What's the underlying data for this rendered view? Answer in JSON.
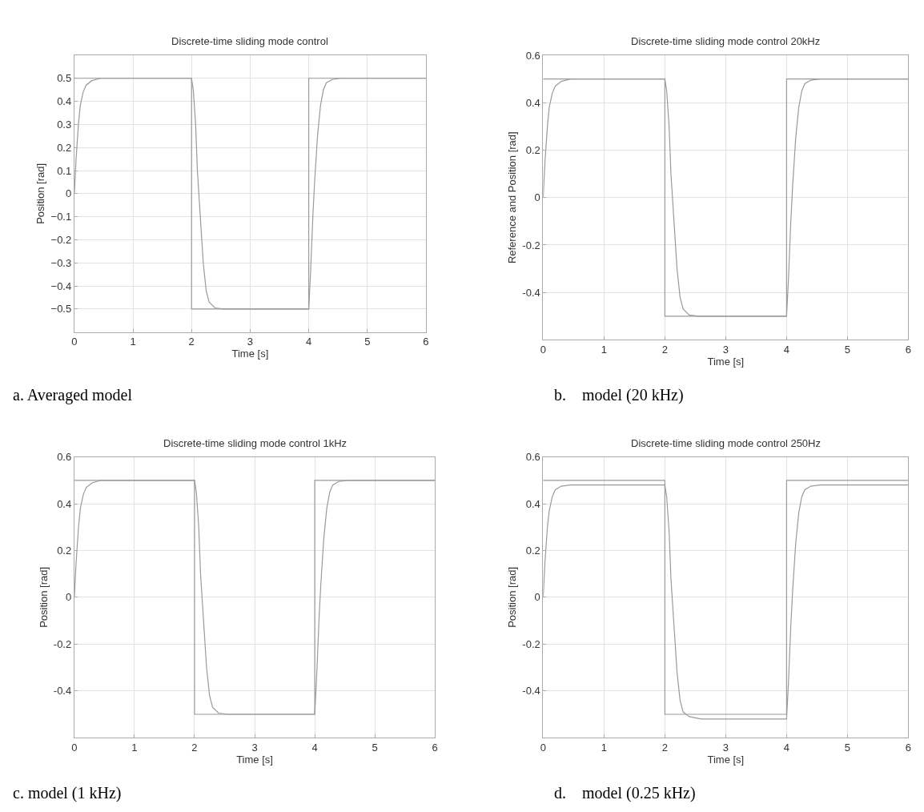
{
  "chart_data": [
    {
      "type": "line",
      "title": "Discrete-time sliding mode control",
      "xlabel": "Time [s]",
      "ylabel": "Position [rad]",
      "xlim": [
        0,
        6
      ],
      "xticks": [
        0,
        1,
        2,
        3,
        4,
        5,
        6
      ],
      "ylim": [
        -0.6,
        0.6
      ],
      "yticks": [
        {
          "value": -0.5,
          "label": "−0.5"
        },
        {
          "value": -0.4,
          "label": "−0.4"
        },
        {
          "value": -0.3,
          "label": "−0.3"
        },
        {
          "value": -0.2,
          "label": "−0.2"
        },
        {
          "value": -0.1,
          "label": "−0.1"
        },
        0,
        0.1,
        0.2,
        0.3,
        0.4,
        0.5
      ],
      "grid": true,
      "annotations": [
        "a. Averaged model"
      ],
      "series": [
        {
          "color": "#9a9a9a",
          "x": [
            0,
            2,
            2,
            4,
            4,
            6
          ],
          "values": [
            0.5,
            0.5,
            -0.5,
            -0.5,
            0.5,
            0.5
          ]
        },
        {
          "color": "#9a9a9a",
          "x": [
            0,
            0.03,
            0.07,
            0.1,
            0.15,
            0.2,
            0.3,
            0.45,
            2.0,
            2.03,
            2.07,
            2.1,
            2.15,
            2.2,
            2.25,
            2.3,
            2.4,
            2.55,
            4.0,
            4.03,
            4.07,
            4.1,
            4.15,
            4.2,
            4.25,
            4.3,
            4.4,
            4.55,
            6
          ],
          "values": [
            0,
            0.15,
            0.3,
            0.38,
            0.44,
            0.47,
            0.49,
            0.5,
            0.5,
            0.45,
            0.3,
            0.1,
            -0.1,
            -0.3,
            -0.42,
            -0.47,
            -0.495,
            -0.5,
            -0.5,
            -0.35,
            -0.1,
            0.05,
            0.25,
            0.38,
            0.45,
            0.48,
            0.495,
            0.5,
            0.5
          ]
        }
      ]
    },
    {
      "type": "line",
      "title": "Discrete-time sliding mode control 20kHz",
      "xlabel": "Time [s]",
      "ylabel": "Reference and Position [rad]",
      "xlim": [
        0,
        6
      ],
      "xticks": [
        0,
        1,
        2,
        3,
        4,
        5,
        6
      ],
      "ylim": [
        -0.6,
        0.6
      ],
      "yticks": [
        -0.4,
        -0.2,
        0,
        0.2,
        0.4,
        0.6
      ],
      "grid": true,
      "annotations": [
        "b.    model (20 kHz)"
      ],
      "series": [
        {
          "color": "#9a9a9a",
          "x": [
            0,
            2,
            2,
            4,
            4,
            6
          ],
          "values": [
            0.5,
            0.5,
            -0.5,
            -0.5,
            0.5,
            0.5
          ]
        },
        {
          "color": "#9a9a9a",
          "x": [
            0,
            0.03,
            0.07,
            0.1,
            0.15,
            0.2,
            0.3,
            0.45,
            2.0,
            2.03,
            2.07,
            2.1,
            2.15,
            2.2,
            2.25,
            2.3,
            2.4,
            2.55,
            4.0,
            4.03,
            4.07,
            4.1,
            4.15,
            4.2,
            4.25,
            4.3,
            4.4,
            4.55,
            6
          ],
          "values": [
            0,
            0.15,
            0.3,
            0.38,
            0.44,
            0.47,
            0.49,
            0.5,
            0.5,
            0.45,
            0.3,
            0.1,
            -0.1,
            -0.3,
            -0.42,
            -0.47,
            -0.495,
            -0.5,
            -0.5,
            -0.35,
            -0.1,
            0.05,
            0.25,
            0.38,
            0.45,
            0.48,
            0.495,
            0.5,
            0.5
          ]
        }
      ]
    },
    {
      "type": "line",
      "title": "Discrete-time sliding mode control 1kHz",
      "xlabel": "Time [s]",
      "ylabel": "Position [rad]",
      "xlim": [
        0,
        6
      ],
      "xticks": [
        0,
        1,
        2,
        3,
        4,
        5,
        6
      ],
      "ylim": [
        -0.6,
        0.6
      ],
      "yticks": [
        -0.4,
        -0.2,
        0,
        0.2,
        0.4,
        0.6
      ],
      "grid": true,
      "annotations": [
        "c. model (1 kHz)"
      ],
      "series": [
        {
          "color": "#9a9a9a",
          "x": [
            0,
            2,
            2,
            4,
            4,
            6
          ],
          "values": [
            0.5,
            0.5,
            -0.5,
            -0.5,
            0.5,
            0.5
          ]
        },
        {
          "color": "#9a9a9a",
          "x": [
            0,
            0.03,
            0.07,
            0.1,
            0.15,
            0.2,
            0.3,
            0.45,
            2.0,
            2.03,
            2.07,
            2.1,
            2.15,
            2.2,
            2.25,
            2.3,
            2.4,
            2.55,
            4.0,
            4.03,
            4.07,
            4.1,
            4.15,
            4.2,
            4.25,
            4.3,
            4.4,
            4.55,
            6
          ],
          "values": [
            0,
            0.15,
            0.3,
            0.38,
            0.44,
            0.47,
            0.49,
            0.5,
            0.5,
            0.45,
            0.3,
            0.1,
            -0.1,
            -0.3,
            -0.42,
            -0.47,
            -0.495,
            -0.5,
            -0.5,
            -0.35,
            -0.1,
            0.05,
            0.25,
            0.38,
            0.45,
            0.48,
            0.495,
            0.5,
            0.5
          ]
        }
      ]
    },
    {
      "type": "line",
      "title": "Discrete-time sliding mode control 250Hz",
      "xlabel": "Time [s]",
      "ylabel": "Position [rad]",
      "xlim": [
        0,
        6
      ],
      "xticks": [
        0,
        1,
        2,
        3,
        4,
        5,
        6
      ],
      "ylim": [
        -0.6,
        0.6
      ],
      "yticks": [
        -0.4,
        -0.2,
        0,
        0.2,
        0.4,
        0.6
      ],
      "grid": true,
      "annotations": [
        "d.    model (0.25 kHz)"
      ],
      "series": [
        {
          "color": "#9a9a9a",
          "x": [
            0,
            2,
            2,
            4,
            4,
            6
          ],
          "values": [
            0.5,
            0.5,
            -0.5,
            -0.5,
            0.5,
            0.5
          ]
        },
        {
          "color": "#9a9a9a",
          "x": [
            0,
            0.03,
            0.07,
            0.1,
            0.15,
            0.2,
            0.3,
            0.45,
            2.0,
            2.03,
            2.07,
            2.1,
            2.15,
            2.2,
            2.25,
            2.3,
            2.4,
            2.6,
            4.0,
            4.03,
            4.07,
            4.1,
            4.15,
            4.2,
            4.25,
            4.3,
            4.4,
            4.55,
            6
          ],
          "values": [
            0,
            0.15,
            0.3,
            0.37,
            0.43,
            0.46,
            0.475,
            0.48,
            0.48,
            0.43,
            0.28,
            0.08,
            -0.12,
            -0.32,
            -0.44,
            -0.49,
            -0.51,
            -0.52,
            -0.52,
            -0.37,
            -0.12,
            0.03,
            0.23,
            0.36,
            0.43,
            0.46,
            0.475,
            0.48,
            0.48
          ]
        }
      ]
    }
  ]
}
